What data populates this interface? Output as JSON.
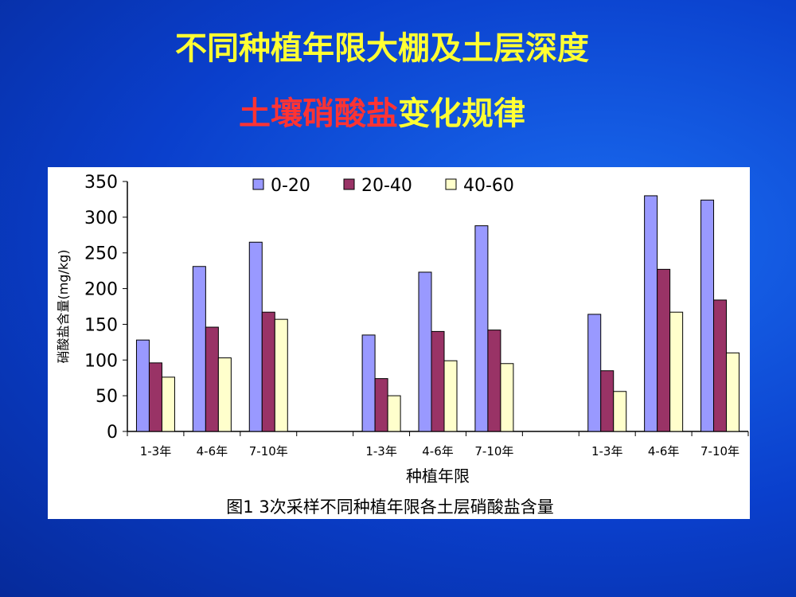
{
  "slide": {
    "title_line1": "不同种植年限大棚及土层深度",
    "title_line2_red": "土壤硝酸盐",
    "title_line2_yellow": "变化规律"
  },
  "chart_data": {
    "type": "bar",
    "y_label": "硝酸盐含量(mg/kg)",
    "x_label": "种植年限",
    "caption": "图1 3次采样不同种植年限各土层硝酸盐含量",
    "categories": [
      "1-3年",
      "4-6年",
      "7-10年",
      null,
      "1-3年",
      "4-6年",
      "7-10年",
      null,
      "1-3年",
      "4-6年",
      "7-10年"
    ],
    "series": [
      {
        "name": "0-20",
        "color": "#9999ff",
        "values": [
          128,
          231,
          265,
          null,
          135,
          223,
          288,
          null,
          164,
          330,
          324
        ]
      },
      {
        "name": "20-40",
        "color": "#993366",
        "values": [
          96,
          146,
          167,
          null,
          74,
          140,
          142,
          null,
          85,
          227,
          184
        ]
      },
      {
        "name": "40-60",
        "color": "#ffffcc",
        "values": [
          76,
          103,
          157,
          null,
          50,
          99,
          95,
          null,
          56,
          167,
          110
        ]
      }
    ],
    "ylim": [
      0,
      350
    ],
    "yticks": [
      0,
      50,
      100,
      150,
      200,
      250,
      300,
      350
    ],
    "grid": false
  }
}
